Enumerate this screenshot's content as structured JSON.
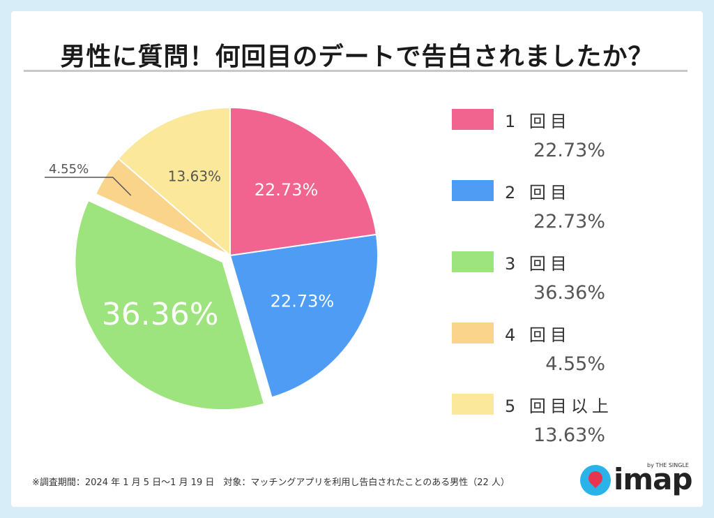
{
  "title": "男性に質問！何回目のデートで告白されましたか？",
  "footnote": "※調査期間：2024 年 1 月 5 日～1 月 19 日　対象：マッチングアプリを利用し告白されたことのある男性（22 人）",
  "logo": {
    "text": "imap",
    "sub": "by THE SINGLE"
  },
  "chart_data": {
    "type": "pie",
    "categories": [
      "1 回目",
      "2 回目",
      "3 回目",
      "4 回目",
      "5 回目以上"
    ],
    "values": [
      22.73,
      22.73,
      36.36,
      4.55,
      13.63
    ],
    "labels": [
      "22.73%",
      "22.73%",
      "36.36%",
      "4.55%",
      "13.63%"
    ],
    "colors": [
      "#f0648f",
      "#4f9cf5",
      "#9ee47e",
      "#fbd48c",
      "#fbe89a"
    ],
    "exploded": [
      false,
      false,
      true,
      false,
      false
    ],
    "legend_position": "right",
    "start_angle": "top, clockwise"
  }
}
